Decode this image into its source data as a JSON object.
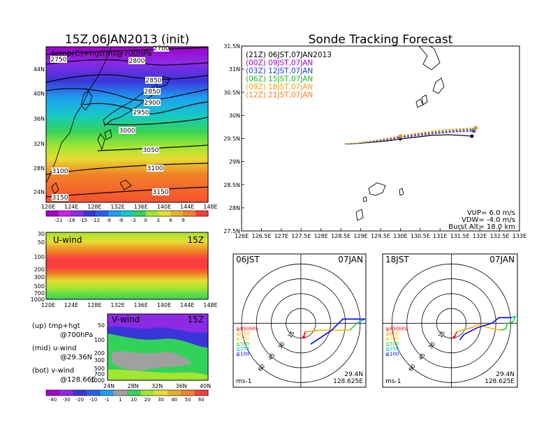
{
  "left_panel": {
    "title": "15Z,06JAN2013 (init)",
    "subtitle": "temp(C)+hgt(m)@700hPa",
    "lat_labels": [
      "44N",
      "40N",
      "36N",
      "32N",
      "28N",
      "24N"
    ],
    "lon_labels": [
      "120E",
      "124E",
      "128E",
      "132E",
      "136E",
      "140E",
      "144E",
      "148E"
    ],
    "contour_labels": [
      "2700",
      "2750",
      "2800",
      "2850",
      "2850",
      "2900",
      "2950",
      "3000",
      "3050",
      "3100",
      "3100",
      "3150",
      "3150"
    ],
    "colorbar_labels": [
      "-21",
      "-18",
      "-15",
      "-12",
      "-9",
      "-6",
      "-3",
      "0",
      "3",
      "6",
      "9"
    ],
    "colorbar_colors": [
      "#a000c8",
      "#d020e8",
      "#8c2ae6",
      "#3a35d9",
      "#2760f0",
      "#1ea0f0",
      "#16c8c8",
      "#32d25a",
      "#a0e632",
      "#e6dc32",
      "#e6af2d",
      "#f08228",
      "#fa3c3c"
    ]
  },
  "uwind_panel": {
    "title": "U-wind",
    "time": "15Z",
    "p_labels": [
      "30",
      "50",
      "100",
      "200",
      "300",
      "500",
      "700",
      "1000"
    ],
    "lon_labels": [
      "120E",
      "124E",
      "128E",
      "132E",
      "136E",
      "140E",
      "144E",
      "148E"
    ]
  },
  "vwind_panel": {
    "title": "V-wind",
    "time": "15Z",
    "p_labels": [
      "50",
      "100",
      "200",
      "300",
      "500",
      "700",
      "1000"
    ],
    "lat_labels": [
      "24N",
      "28N",
      "32N",
      "36N",
      "40N"
    ]
  },
  "legend_notes": {
    "up_1": "(up) tmp+hgt",
    "up_2": "@700hPa",
    "mid_1": "(mid) u-wind",
    "mid_2": "@29.36N",
    "bot_1": "(bot) v-wind",
    "bot_2": "@128.66E"
  },
  "wind_colorbar": {
    "labels": [
      "-40",
      "-30",
      "-20",
      "-10",
      "-1",
      "1",
      "10",
      "20",
      "30",
      "40",
      "50",
      "60"
    ],
    "colors": [
      "#a000c8",
      "#8c2ae6",
      "#3a35d9",
      "#2760f0",
      "#1ea0f0",
      "#a0a0a0",
      "#32d25a",
      "#a0e632",
      "#e6dc32",
      "#e6af2d",
      "#f08228",
      "#fa3c3c"
    ]
  },
  "tracking": {
    "title": "Sonde Tracking Forecast",
    "lat_labels": [
      "31.5N",
      "31N",
      "30.5N",
      "30N",
      "29.5N",
      "29N",
      "28.5N",
      "28N",
      "27.5N"
    ],
    "lon_labels": [
      "126E",
      "126.5E",
      "127E",
      "127.5E",
      "128E",
      "128.5E",
      "129E",
      "129.5E",
      "130E",
      "130.5E",
      "131E",
      "131.5E",
      "132E",
      "132.5E",
      "133E"
    ],
    "vup": "VUP= 6.0 m/s",
    "vdw": "VDW= -4.0 m/s",
    "burst": "Burst Alt= 18.0 km"
  },
  "hodo_left": {
    "time": "06JST",
    "date": "07JAN",
    "lat": "29.4N",
    "lon": "128.625E",
    "unit": "ms-1",
    "rings": [
      "15",
      "30",
      "45",
      "60"
    ],
    "levels": [
      "≧850hPa",
      "≦850",
      "≦700",
      "≦500",
      "≦250",
      "≦100"
    ]
  },
  "hodo_right": {
    "time": "18JST",
    "date": "07JAN",
    "lat": "29.4N",
    "lon": "128.625E",
    "unit": "ms-1",
    "rings": [
      "15",
      "30",
      "45",
      "60"
    ],
    "levels": [
      "≧850hPa",
      "≦850",
      "≦700",
      "≦500",
      "≦250",
      "≦100"
    ]
  },
  "level_colors": [
    "#ff0000",
    "#ffa500",
    "#e6c800",
    "#32c832",
    "#00b4e6",
    "#0000ff"
  ],
  "chart_data": {
    "type": "line",
    "title": "Sonde Tracking Forecast",
    "xlim": [
      126,
      133
    ],
    "ylim": [
      27.5,
      31.5
    ],
    "grid": true,
    "series": [
      {
        "name": "(21Z) 06JST,07JAN2013",
        "color": "#000000",
        "x": [
          128.6,
          128.9,
          129.3,
          129.7,
          130.0,
          130.4,
          130.8,
          131.2,
          131.5,
          131.8
        ],
        "y": [
          29.38,
          29.39,
          29.42,
          29.45,
          29.49,
          29.53,
          29.57,
          29.58,
          29.57,
          29.55
        ]
      },
      {
        "name": "(00Z) 09JST,07JAN",
        "color": "#a000c8",
        "x": [
          128.6,
          128.9,
          129.3,
          129.7,
          130.0,
          130.4,
          130.8,
          131.2,
          131.5,
          131.85
        ],
        "y": [
          29.38,
          29.39,
          29.43,
          29.47,
          29.52,
          29.56,
          29.6,
          29.63,
          29.65,
          29.66
        ]
      },
      {
        "name": "(03Z) 12JST,07JAN",
        "color": "#2040e6",
        "x": [
          128.6,
          128.9,
          129.3,
          129.7,
          130.0,
          130.4,
          130.8,
          131.2,
          131.5,
          131.85
        ],
        "y": [
          29.38,
          29.39,
          29.43,
          29.48,
          29.53,
          29.58,
          29.62,
          29.65,
          29.67,
          29.68
        ]
      },
      {
        "name": "(06Z) 15JST,07JAN",
        "color": "#20b420",
        "x": [
          128.6,
          128.9,
          129.3,
          129.7,
          130.0,
          130.4,
          130.8,
          131.2,
          131.5,
          131.85
        ],
        "y": [
          29.38,
          29.39,
          29.44,
          29.49,
          29.54,
          29.59,
          29.63,
          29.66,
          29.69,
          29.7
        ]
      },
      {
        "name": "(09Z) 18JST,07JAN",
        "color": "#f0a020",
        "x": [
          128.6,
          128.9,
          129.3,
          129.7,
          130.0,
          130.4,
          130.8,
          131.2,
          131.5,
          131.9
        ],
        "y": [
          29.38,
          29.4,
          29.45,
          29.5,
          29.55,
          29.6,
          29.65,
          29.68,
          29.7,
          29.72
        ]
      },
      {
        "name": "(12Z) 21JST,07JAN",
        "color": "#f08228",
        "x": [
          128.6,
          128.9,
          129.3,
          129.7,
          130.0,
          130.4,
          130.8,
          131.2,
          131.5,
          131.9
        ],
        "y": [
          29.38,
          29.4,
          29.45,
          29.51,
          29.56,
          29.61,
          29.66,
          29.69,
          29.71,
          29.73
        ]
      }
    ]
  }
}
